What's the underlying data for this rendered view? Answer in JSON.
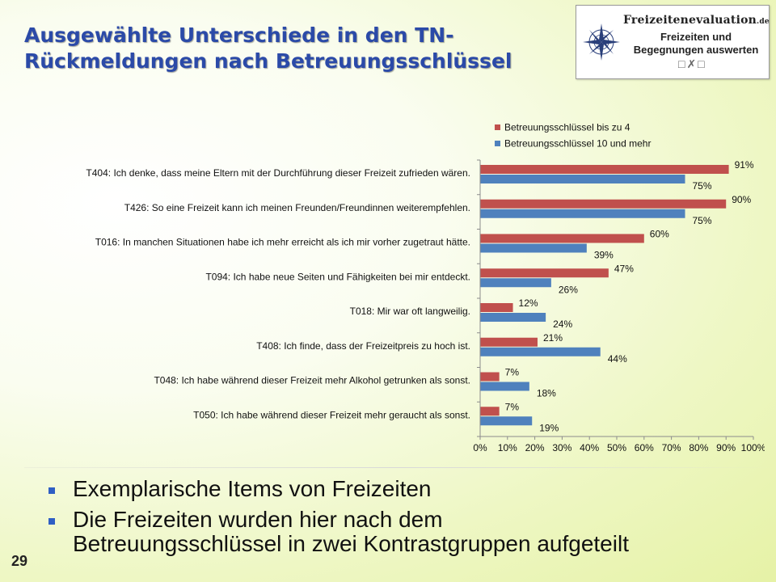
{
  "slide": {
    "title": "Ausgewählte Unterschiede in den TN-\nRückmeldungen nach Betreuungsschlüssel",
    "logo": {
      "brand": "Freizeitenevaluation",
      "tld": ".de",
      "tagline": "Freizeiten und\nBegegnungen auswerten"
    },
    "bullets": [
      "Exemplarische Items von Freizeiten",
      "Die Freizeiten wurden hier nach dem\nBetreuungsschlüssel in zwei Kontrastgruppen aufgeteilt"
    ],
    "slide_number": "29"
  },
  "chart_data": {
    "type": "bar",
    "orientation": "horizontal",
    "categories": [
      "T404: Ich denke, dass meine Eltern mit der Durchführung dieser Freizeit zufrieden wären.",
      "T426: So eine Freizeit kann ich meinen Freunden/Freundinnen weiterempfehlen.",
      "T016: In manchen Situationen habe ich mehr erreicht als ich mir vorher zugetraut hätte.",
      "T094: Ich habe neue Seiten und Fähigkeiten bei mir entdeckt.",
      "T018: Mir war oft langweilig.",
      "T408: Ich finde, dass der Freizeitpreis zu hoch ist.",
      "T048: Ich habe während dieser Freizeit mehr Alkohol getrunken als sonst.",
      "T050: Ich habe während dieser Freizeit mehr geraucht als sonst."
    ],
    "series": [
      {
        "name": "Betreuungsschlüssel bis zu 4",
        "color": "#c0504d",
        "values": [
          91,
          90,
          60,
          47,
          12,
          21,
          7,
          7
        ]
      },
      {
        "name": "Betreuungsschlüssel 10 und mehr",
        "color": "#4f81bd",
        "values": [
          75,
          75,
          39,
          26,
          24,
          44,
          18,
          19
        ]
      }
    ],
    "xlim": [
      0,
      100
    ],
    "xticks": [
      0,
      10,
      20,
      30,
      40,
      50,
      60,
      70,
      80,
      90,
      100
    ],
    "value_suffix": "%",
    "grid": false,
    "legend": "top-right"
  }
}
